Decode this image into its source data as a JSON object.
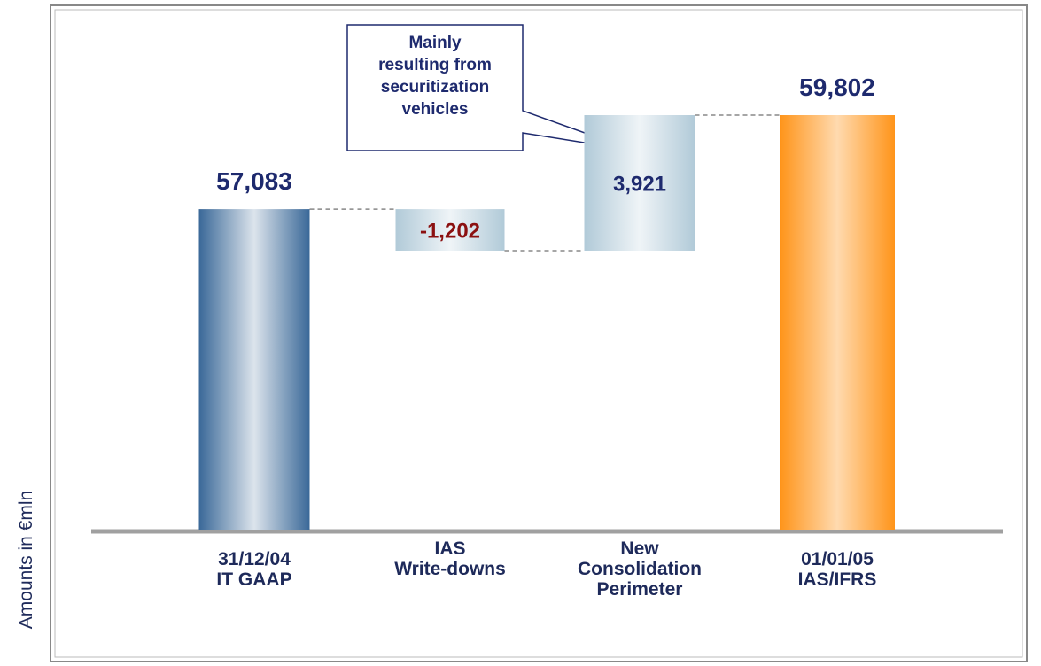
{
  "chart_data": {
    "type": "waterfall",
    "y_label": "Amounts in €mln",
    "annotation": "Mainly\nresulting from\nsecuritization\nvehicles",
    "categories": [
      "31/12/04\nIT GAAP",
      "IAS\nWrite-downs",
      "New\nConsolidation\nPerimeter",
      "01/01/05\nIAS/IFRS"
    ],
    "values": [
      57083,
      -1202,
      3921,
      59802
    ],
    "value_labels": [
      "57,083",
      "-1,202",
      "3,921",
      "59,802"
    ],
    "colors": [
      "#3a6898",
      "#a8c4d4",
      "#a8c4d4",
      "#ff9419"
    ],
    "label_color": "#1e2a6e",
    "negative_label_color": "#8b1010"
  }
}
